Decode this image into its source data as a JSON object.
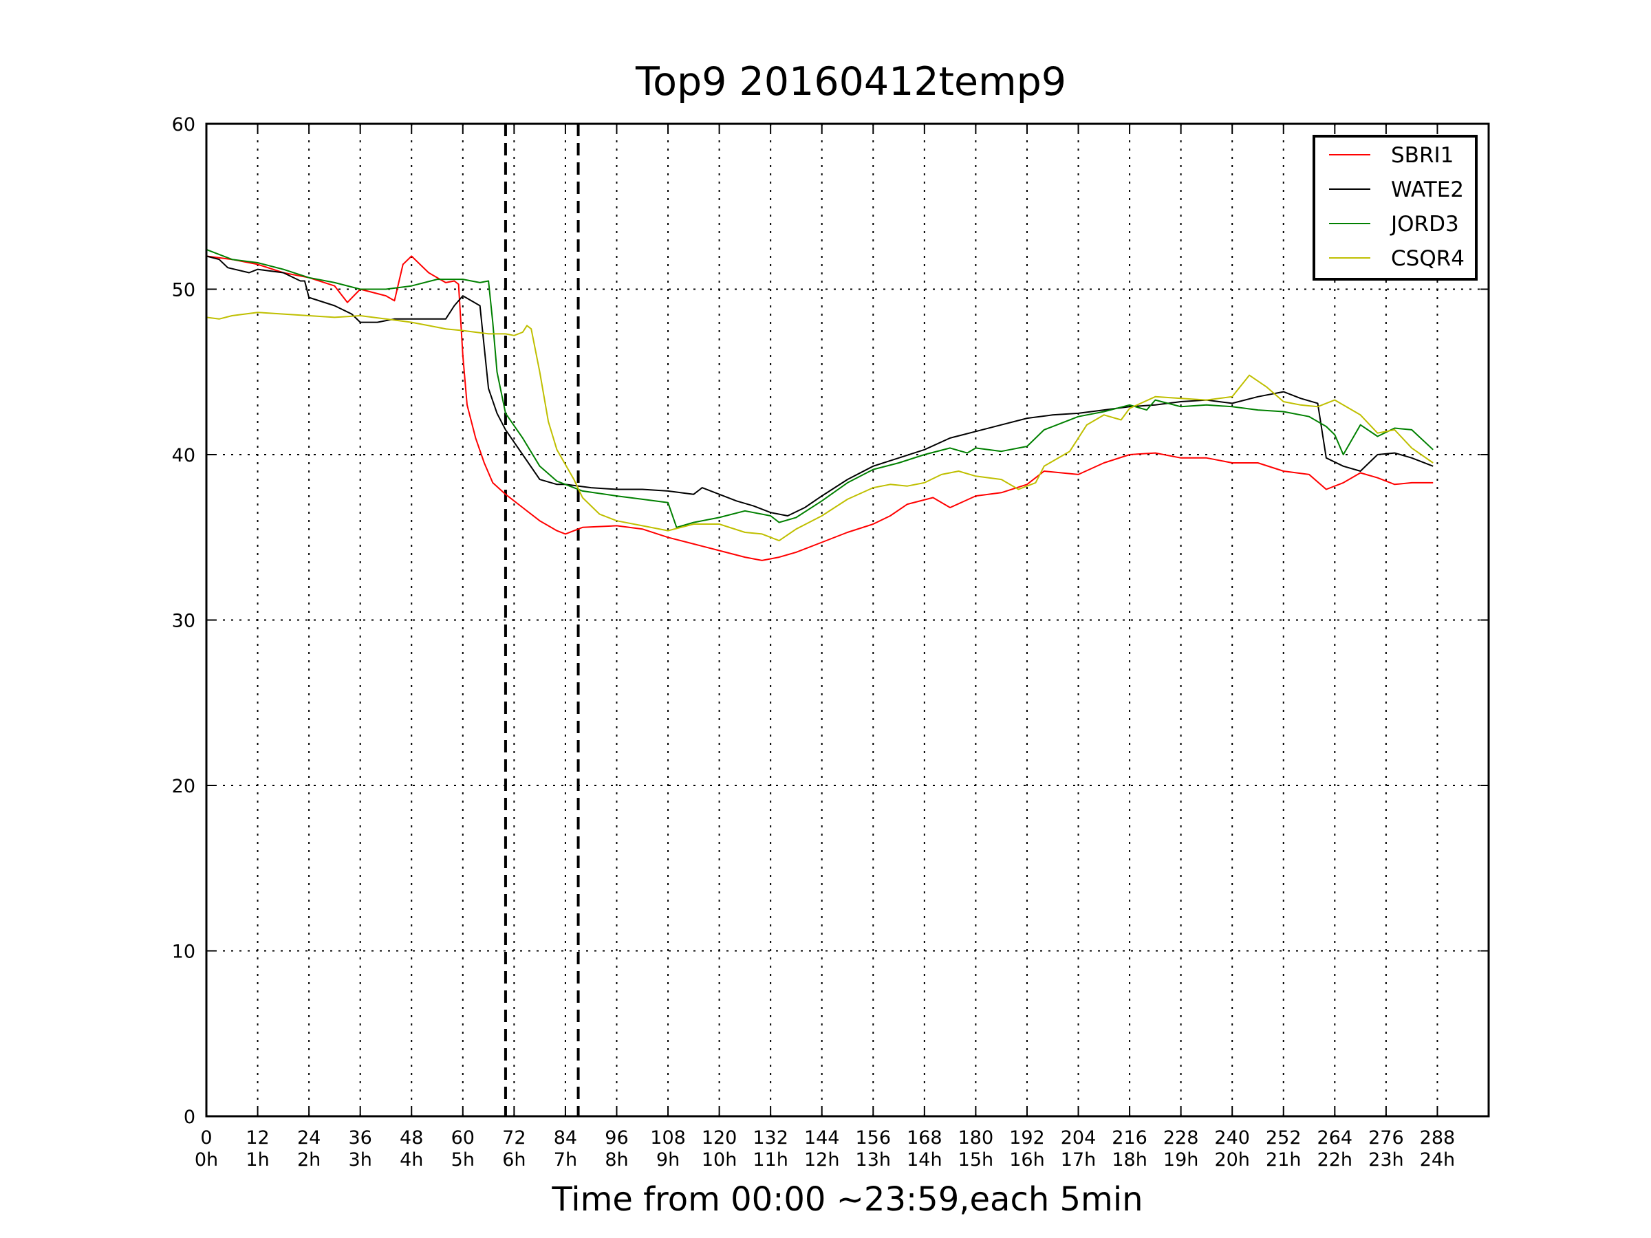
{
  "chart_data": {
    "type": "line",
    "title": "Top9 20160412temp9",
    "xlabel": "Time from 00:00 ~23:59,each 5min",
    "ylabel": "",
    "xlim": [
      0,
      300
    ],
    "ylim": [
      0,
      60
    ],
    "grid": true,
    "legend_position": "top-right",
    "y_ticks": [
      0,
      10,
      20,
      30,
      40,
      50,
      60
    ],
    "x_ticks": [
      {
        "value": 0,
        "label": "0",
        "sublabel": "0h"
      },
      {
        "value": 12,
        "label": "12",
        "sublabel": "1h"
      },
      {
        "value": 24,
        "label": "24",
        "sublabel": "2h"
      },
      {
        "value": 36,
        "label": "36",
        "sublabel": "3h"
      },
      {
        "value": 48,
        "label": "48",
        "sublabel": "4h"
      },
      {
        "value": 60,
        "label": "60",
        "sublabel": "5h"
      },
      {
        "value": 72,
        "label": "72",
        "sublabel": "6h"
      },
      {
        "value": 84,
        "label": "84",
        "sublabel": "7h"
      },
      {
        "value": 96,
        "label": "96",
        "sublabel": "8h"
      },
      {
        "value": 108,
        "label": "108",
        "sublabel": "9h"
      },
      {
        "value": 120,
        "label": "120",
        "sublabel": "10h"
      },
      {
        "value": 132,
        "label": "132",
        "sublabel": "11h"
      },
      {
        "value": 144,
        "label": "144",
        "sublabel": "12h"
      },
      {
        "value": 156,
        "label": "156",
        "sublabel": "13h"
      },
      {
        "value": 168,
        "label": "168",
        "sublabel": "14h"
      },
      {
        "value": 180,
        "label": "180",
        "sublabel": "15h"
      },
      {
        "value": 192,
        "label": "192",
        "sublabel": "16h"
      },
      {
        "value": 204,
        "label": "204",
        "sublabel": "17h"
      },
      {
        "value": 216,
        "label": "216",
        "sublabel": "18h"
      },
      {
        "value": 228,
        "label": "228",
        "sublabel": "19h"
      },
      {
        "value": 240,
        "label": "240",
        "sublabel": "20h"
      },
      {
        "value": 252,
        "label": "252",
        "sublabel": "21h"
      },
      {
        "value": 264,
        "label": "264",
        "sublabel": "22h"
      },
      {
        "value": 276,
        "label": "276",
        "sublabel": "23h"
      },
      {
        "value": 288,
        "label": "288",
        "sublabel": "24h"
      }
    ],
    "vlines": [
      70,
      87
    ],
    "series": [
      {
        "name": "SBRI1",
        "color": "#ff0000",
        "points": [
          [
            0,
            52
          ],
          [
            6,
            51.8
          ],
          [
            12,
            51.5
          ],
          [
            18,
            51
          ],
          [
            24,
            50.7
          ],
          [
            30,
            50.2
          ],
          [
            33,
            49.2
          ],
          [
            36,
            50
          ],
          [
            42,
            49.6
          ],
          [
            44,
            49.3
          ],
          [
            46,
            51.5
          ],
          [
            48,
            52
          ],
          [
            52,
            51
          ],
          [
            56,
            50.4
          ],
          [
            58,
            50.5
          ],
          [
            59,
            50.3
          ],
          [
            60,
            46
          ],
          [
            61,
            43
          ],
          [
            63,
            41
          ],
          [
            65,
            39.5
          ],
          [
            67,
            38.3
          ],
          [
            70,
            37.6
          ],
          [
            74,
            36.8
          ],
          [
            78,
            36
          ],
          [
            82,
            35.4
          ],
          [
            84,
            35.2
          ],
          [
            88,
            35.6
          ],
          [
            96,
            35.7
          ],
          [
            102,
            35.5
          ],
          [
            108,
            35
          ],
          [
            114,
            34.6
          ],
          [
            120,
            34.2
          ],
          [
            126,
            33.8
          ],
          [
            130,
            33.6
          ],
          [
            134,
            33.8
          ],
          [
            138,
            34.1
          ],
          [
            144,
            34.7
          ],
          [
            150,
            35.3
          ],
          [
            156,
            35.8
          ],
          [
            160,
            36.3
          ],
          [
            164,
            37
          ],
          [
            170,
            37.4
          ],
          [
            174,
            36.8
          ],
          [
            180,
            37.5
          ],
          [
            186,
            37.7
          ],
          [
            192,
            38.2
          ],
          [
            196,
            39
          ],
          [
            204,
            38.8
          ],
          [
            210,
            39.5
          ],
          [
            216,
            40
          ],
          [
            222,
            40.1
          ],
          [
            228,
            39.8
          ],
          [
            234,
            39.8
          ],
          [
            240,
            39.5
          ],
          [
            246,
            39.5
          ],
          [
            252,
            39
          ],
          [
            258,
            38.8
          ],
          [
            262,
            37.9
          ],
          [
            266,
            38.3
          ],
          [
            270,
            38.9
          ],
          [
            274,
            38.6
          ],
          [
            278,
            38.2
          ],
          [
            282,
            38.3
          ],
          [
            287,
            38.3
          ]
        ]
      },
      {
        "name": "WATE2",
        "color": "#000000",
        "points": [
          [
            0,
            52
          ],
          [
            3,
            51.8
          ],
          [
            5,
            51.3
          ],
          [
            10,
            51
          ],
          [
            12,
            51.2
          ],
          [
            18,
            51
          ],
          [
            22,
            50.5
          ],
          [
            23,
            50.5
          ],
          [
            24,
            49.5
          ],
          [
            30,
            49
          ],
          [
            34,
            48.5
          ],
          [
            36,
            48
          ],
          [
            40,
            48
          ],
          [
            44,
            48.2
          ],
          [
            48,
            48.2
          ],
          [
            54,
            48.2
          ],
          [
            56,
            48.2
          ],
          [
            58,
            49
          ],
          [
            60,
            49.6
          ],
          [
            62,
            49.3
          ],
          [
            64,
            49
          ],
          [
            65,
            46.5
          ],
          [
            66,
            44
          ],
          [
            68,
            42.5
          ],
          [
            70,
            41.5
          ],
          [
            74,
            40
          ],
          [
            78,
            38.5
          ],
          [
            82,
            38.2
          ],
          [
            84,
            38.2
          ],
          [
            90,
            38
          ],
          [
            96,
            37.9
          ],
          [
            102,
            37.9
          ],
          [
            108,
            37.8
          ],
          [
            114,
            37.6
          ],
          [
            116,
            38
          ],
          [
            120,
            37.6
          ],
          [
            124,
            37.2
          ],
          [
            128,
            36.9
          ],
          [
            132,
            36.5
          ],
          [
            136,
            36.3
          ],
          [
            140,
            36.8
          ],
          [
            144,
            37.5
          ],
          [
            150,
            38.5
          ],
          [
            156,
            39.3
          ],
          [
            162,
            39.8
          ],
          [
            168,
            40.3
          ],
          [
            174,
            41
          ],
          [
            180,
            41.4
          ],
          [
            186,
            41.8
          ],
          [
            192,
            42.2
          ],
          [
            198,
            42.4
          ],
          [
            204,
            42.5
          ],
          [
            210,
            42.7
          ],
          [
            216,
            42.9
          ],
          [
            222,
            43
          ],
          [
            228,
            43.2
          ],
          [
            234,
            43.3
          ],
          [
            240,
            43.1
          ],
          [
            246,
            43.5
          ],
          [
            252,
            43.8
          ],
          [
            256,
            43.4
          ],
          [
            260,
            43.1
          ],
          [
            262,
            39.8
          ],
          [
            266,
            39.3
          ],
          [
            270,
            39
          ],
          [
            274,
            40
          ],
          [
            278,
            40.1
          ],
          [
            282,
            39.8
          ],
          [
            287,
            39.3
          ]
        ]
      },
      {
        "name": "JORD3",
        "color": "#008000",
        "points": [
          [
            0,
            52.4
          ],
          [
            6,
            51.8
          ],
          [
            12,
            51.6
          ],
          [
            18,
            51.2
          ],
          [
            24,
            50.7
          ],
          [
            30,
            50.4
          ],
          [
            36,
            50
          ],
          [
            42,
            50
          ],
          [
            48,
            50.2
          ],
          [
            54,
            50.6
          ],
          [
            60,
            50.6
          ],
          [
            64,
            50.4
          ],
          [
            66,
            50.5
          ],
          [
            67,
            48
          ],
          [
            68,
            45
          ],
          [
            70,
            42.5
          ],
          [
            74,
            41
          ],
          [
            78,
            39.3
          ],
          [
            82,
            38.4
          ],
          [
            84,
            38.2
          ],
          [
            88,
            37.8
          ],
          [
            96,
            37.5
          ],
          [
            102,
            37.3
          ],
          [
            108,
            37.1
          ],
          [
            110,
            35.6
          ],
          [
            114,
            35.9
          ],
          [
            120,
            36.2
          ],
          [
            126,
            36.6
          ],
          [
            132,
            36.3
          ],
          [
            134,
            35.9
          ],
          [
            138,
            36.2
          ],
          [
            144,
            37.2
          ],
          [
            150,
            38.3
          ],
          [
            156,
            39.1
          ],
          [
            162,
            39.5
          ],
          [
            168,
            40
          ],
          [
            174,
            40.4
          ],
          [
            178,
            40.1
          ],
          [
            180,
            40.4
          ],
          [
            186,
            40.2
          ],
          [
            192,
            40.5
          ],
          [
            196,
            41.5
          ],
          [
            200,
            41.9
          ],
          [
            204,
            42.3
          ],
          [
            210,
            42.6
          ],
          [
            216,
            43
          ],
          [
            220,
            42.7
          ],
          [
            222,
            43.3
          ],
          [
            228,
            42.9
          ],
          [
            234,
            43
          ],
          [
            240,
            42.9
          ],
          [
            246,
            42.7
          ],
          [
            252,
            42.6
          ],
          [
            258,
            42.3
          ],
          [
            262,
            41.7
          ],
          [
            264,
            41.2
          ],
          [
            266,
            40
          ],
          [
            270,
            41.8
          ],
          [
            274,
            41.1
          ],
          [
            278,
            41.6
          ],
          [
            282,
            41.5
          ],
          [
            287,
            40.3
          ]
        ]
      },
      {
        "name": "CSQR4",
        "color": "#bfbf00",
        "points": [
          [
            0,
            48.3
          ],
          [
            3,
            48.2
          ],
          [
            6,
            48.4
          ],
          [
            12,
            48.6
          ],
          [
            18,
            48.5
          ],
          [
            24,
            48.4
          ],
          [
            30,
            48.3
          ],
          [
            36,
            48.4
          ],
          [
            42,
            48.2
          ],
          [
            48,
            48
          ],
          [
            52,
            47.8
          ],
          [
            56,
            47.6
          ],
          [
            60,
            47.5
          ],
          [
            66,
            47.3
          ],
          [
            70,
            47.3
          ],
          [
            72,
            47.2
          ],
          [
            74,
            47.4
          ],
          [
            75,
            47.8
          ],
          [
            76,
            47.6
          ],
          [
            78,
            45
          ],
          [
            80,
            42
          ],
          [
            82,
            40.3
          ],
          [
            86,
            38.5
          ],
          [
            88,
            37.4
          ],
          [
            92,
            36.4
          ],
          [
            96,
            36
          ],
          [
            102,
            35.7
          ],
          [
            108,
            35.4
          ],
          [
            114,
            35.8
          ],
          [
            120,
            35.8
          ],
          [
            126,
            35.3
          ],
          [
            130,
            35.2
          ],
          [
            134,
            34.8
          ],
          [
            138,
            35.5
          ],
          [
            144,
            36.3
          ],
          [
            150,
            37.3
          ],
          [
            156,
            38
          ],
          [
            160,
            38.2
          ],
          [
            164,
            38.1
          ],
          [
            168,
            38.3
          ],
          [
            172,
            38.8
          ],
          [
            176,
            39
          ],
          [
            180,
            38.7
          ],
          [
            186,
            38.5
          ],
          [
            190,
            37.9
          ],
          [
            194,
            38.3
          ],
          [
            196,
            39.3
          ],
          [
            202,
            40.2
          ],
          [
            206,
            41.8
          ],
          [
            210,
            42.4
          ],
          [
            214,
            42.1
          ],
          [
            216,
            42.8
          ],
          [
            222,
            43.5
          ],
          [
            228,
            43.4
          ],
          [
            234,
            43.3
          ],
          [
            240,
            43.5
          ],
          [
            244,
            44.8
          ],
          [
            248,
            44.1
          ],
          [
            252,
            43.2
          ],
          [
            256,
            43
          ],
          [
            260,
            42.9
          ],
          [
            264,
            43.3
          ],
          [
            270,
            42.4
          ],
          [
            274,
            41.3
          ],
          [
            278,
            41.5
          ],
          [
            282,
            40.4
          ],
          [
            287,
            39.5
          ]
        ]
      }
    ]
  }
}
